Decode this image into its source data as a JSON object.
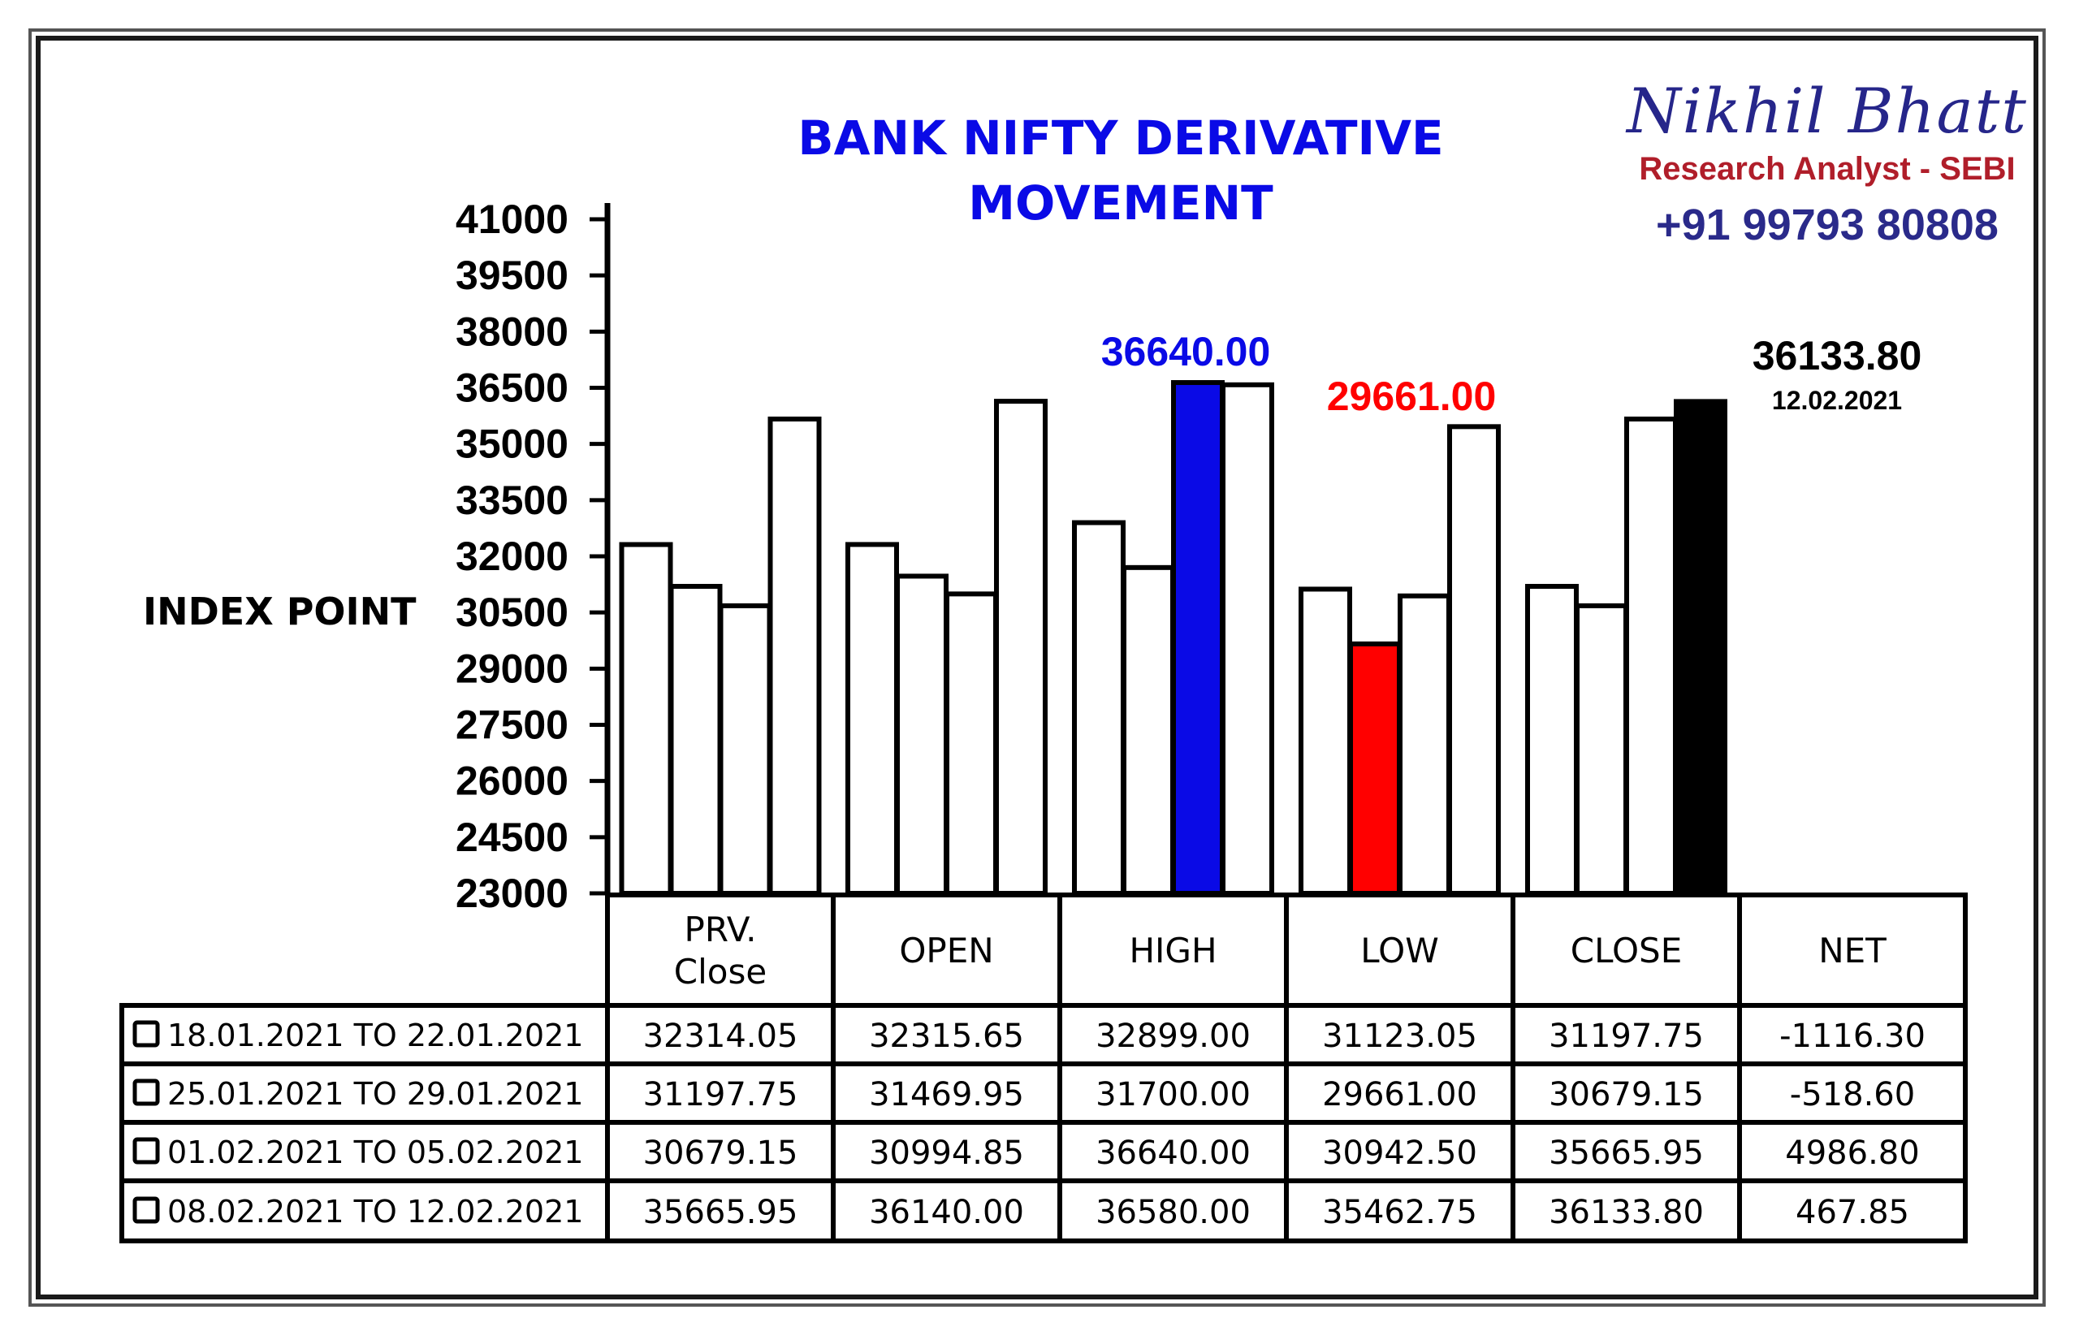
{
  "title_line1": "BANK NIFTY DERIVATIVE",
  "title_line2": "MOVEMENT",
  "brand": {
    "name": "Nikhil Bhatt",
    "role": "Research Analyst - SEBI",
    "phone": "+91 99793 80808"
  },
  "colors": {
    "title": "#0a0ae6",
    "high_highlight": "#0a0ae6",
    "low_highlight": "#ff0000",
    "close_highlight": "#000000",
    "bar_default": "#ffffff"
  },
  "chart_data": {
    "type": "bar",
    "ylabel": "INDEX POINT",
    "ylim": [
      23000,
      41000
    ],
    "yticks": [
      "41000",
      "39500",
      "38000",
      "36500",
      "35000",
      "33500",
      "32000",
      "30500",
      "29000",
      "27500",
      "26000",
      "24500",
      "23000"
    ],
    "categories": [
      "PRV. Close",
      "OPEN",
      "HIGH",
      "LOW",
      "CLOSE"
    ],
    "series": [
      {
        "name": "18.01.2021 TO 22.01.2021",
        "values": [
          32314.05,
          32315.65,
          32899.0,
          31123.05,
          31197.75
        ]
      },
      {
        "name": "25.01.2021 TO 29.01.2021",
        "values": [
          31197.75,
          31469.95,
          31700.0,
          29661.0,
          30679.15
        ]
      },
      {
        "name": "01.02.2021 TO 05.02.2021",
        "values": [
          30679.15,
          30994.85,
          36640.0,
          30942.5,
          35665.95
        ]
      },
      {
        "name": "08.02.2021 TO 12.02.2021",
        "values": [
          35665.95,
          36140.0,
          36580.0,
          35462.75,
          36133.8
        ]
      }
    ],
    "highlights": [
      {
        "category": "HIGH",
        "series": 2,
        "color": "#0a0ae6",
        "label": "36640.00"
      },
      {
        "category": "LOW",
        "series": 1,
        "color": "#ff0000",
        "label": "29661.00"
      },
      {
        "category": "CLOSE",
        "series": 3,
        "color": "#000000",
        "label": "36133.80",
        "sublabel": "12.02.2021"
      }
    ]
  },
  "table": {
    "headers": [
      "PRV.\nClose",
      "OPEN",
      "HIGH",
      "LOW",
      "CLOSE",
      "NET"
    ],
    "rows": [
      {
        "label": "18.01.2021 TO 22.01.2021",
        "values": [
          "32314.05",
          "32315.65",
          "32899.00",
          "31123.05",
          "31197.75",
          "-1116.30"
        ]
      },
      {
        "label": "25.01.2021 TO 29.01.2021",
        "values": [
          "31197.75",
          "31469.95",
          "31700.00",
          "29661.00",
          "30679.15",
          "-518.60"
        ]
      },
      {
        "label": "01.02.2021 TO 05.02.2021",
        "values": [
          "30679.15",
          "30994.85",
          "36640.00",
          "30942.50",
          "35665.95",
          "4986.80"
        ]
      },
      {
        "label": "08.02.2021 TO 12.02.2021",
        "values": [
          "35665.95",
          "36140.00",
          "36580.00",
          "35462.75",
          "36133.80",
          "467.85"
        ]
      }
    ]
  }
}
